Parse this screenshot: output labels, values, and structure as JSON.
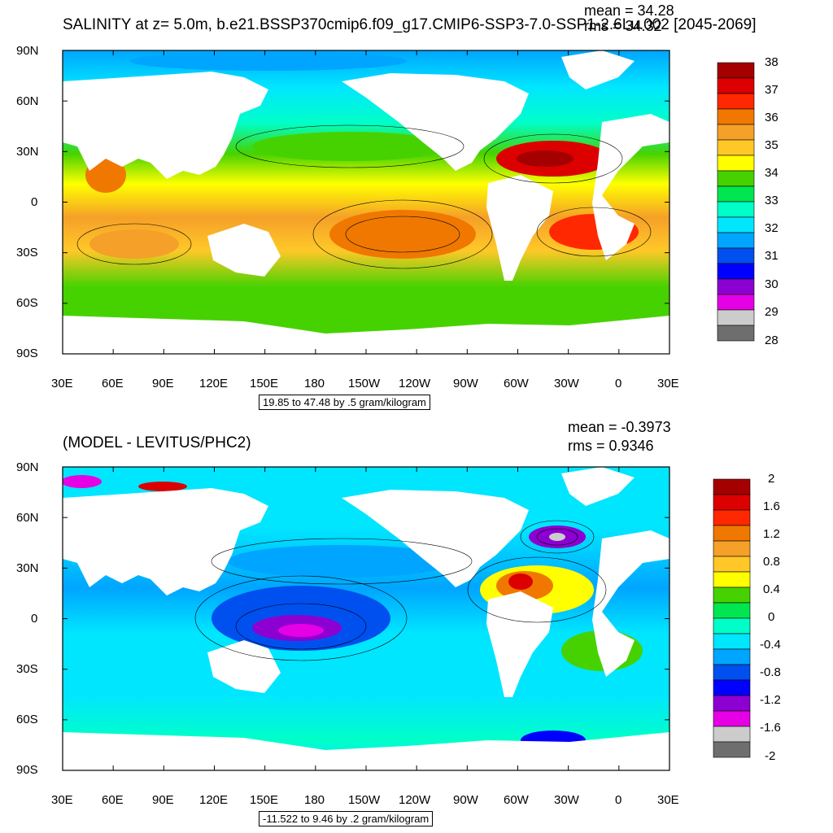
{
  "panel1": {
    "title": "SALINITY at z=   5.0m, b.e21.BSSP370cmip6.f09_g17.CMIP6-SSP3-7.0-SSP1-2.6Lu.002 [2045-2069]",
    "mean": "mean = 34.28",
    "rms": "rms = 34.32",
    "contour_info": "19.85 to 47.48 by .5 gram/kilogram",
    "colorbar_labels": [
      "38",
      "37",
      "36",
      "35",
      "34",
      "33",
      "32",
      "31",
      "30",
      "29",
      "28"
    ],
    "colorbar_colors": [
      "#a50000",
      "#dc0000",
      "#ff2800",
      "#f07800",
      "#f5a028",
      "#ffc828",
      "#ffff00",
      "#46d200",
      "#00e650",
      "#00ffc8",
      "#00e6ff",
      "#00a5ff",
      "#0050f0",
      "#0000ff",
      "#8c00d2",
      "#e600e6",
      "#cccccc",
      "#6e6e6e"
    ]
  },
  "panel2": {
    "title": "(MODEL - LEVITUS/PHC2)",
    "mean": "mean = -0.3973",
    "rms": "rms = 0.9346",
    "contour_info": "-11.522 to 9.46 by .2 gram/kilogram",
    "colorbar_labels": [
      "2",
      "1.6",
      "1.2",
      "0.8",
      "0.4",
      "0",
      "-0.4",
      "-0.8",
      "-1.2",
      "-1.6",
      "-2"
    ],
    "colorbar_colors": [
      "#a50000",
      "#dc0000",
      "#ff2800",
      "#f07800",
      "#f5a028",
      "#ffc828",
      "#ffff00",
      "#46d200",
      "#00e650",
      "#00ffc8",
      "#00e6ff",
      "#00a5ff",
      "#0050f0",
      "#0000ff",
      "#8c00d2",
      "#e600e6",
      "#cccccc",
      "#6e6e6e"
    ]
  },
  "axes": {
    "lat_labels": [
      "90N",
      "60N",
      "30N",
      "0",
      "30S",
      "60S",
      "90S"
    ],
    "lon_labels": [
      "30E",
      "60E",
      "90E",
      "120E",
      "150E",
      "180",
      "150W",
      "120W",
      "90W",
      "60W",
      "30W",
      "0",
      "30E"
    ]
  }
}
